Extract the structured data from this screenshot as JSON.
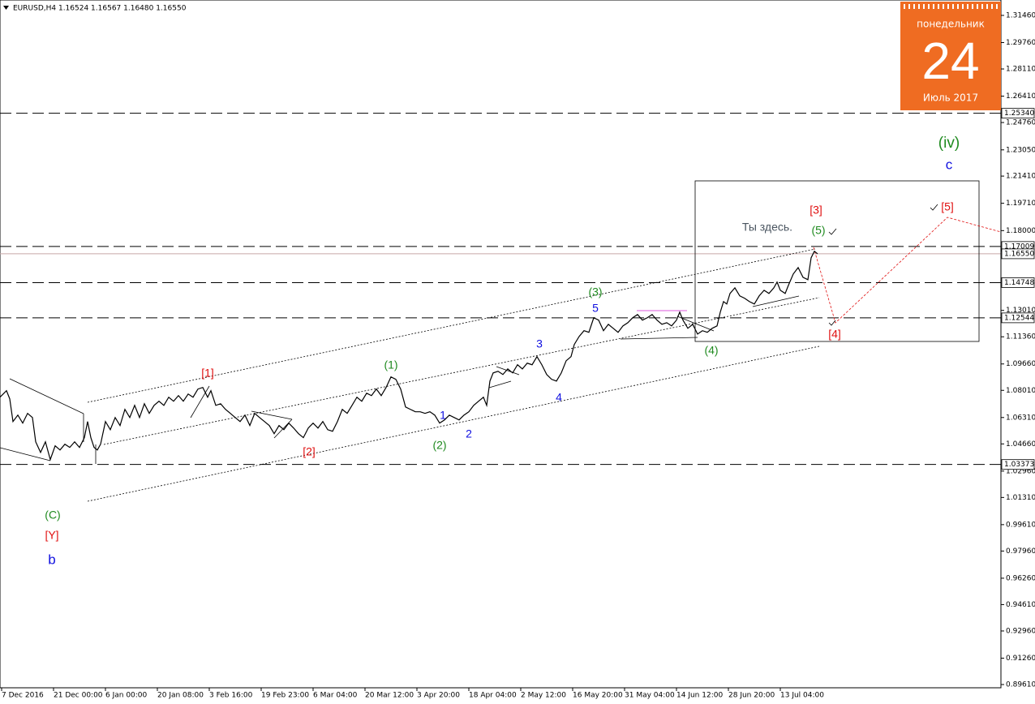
{
  "header": "EURUSD,H4  1.16524 1.16567 1.16480 1.16550",
  "widget": {
    "weekday": "понедельник",
    "day": "24",
    "month_year": "Июль 2017",
    "color": "#ef6c22"
  },
  "chart_data": {
    "type": "line",
    "series": [
      {
        "name": "EURUSD,H4",
        "color": "#000000",
        "x": [
          0,
          8,
          12,
          16,
          22,
          28,
          34,
          40,
          44,
          50,
          56,
          62,
          68,
          74,
          80,
          86,
          92,
          98,
          104,
          108,
          112,
          116,
          120,
          124,
          130,
          136,
          142,
          148,
          154,
          160,
          166,
          172,
          178,
          184,
          190,
          196,
          202,
          208,
          214,
          220,
          226,
          232,
          238,
          244,
          250,
          256,
          260,
          266,
          272,
          278,
          284,
          290,
          296,
          302,
          308,
          314,
          320,
          326,
          332,
          338,
          344,
          350,
          356,
          362,
          368,
          374,
          380,
          386,
          392,
          398,
          404,
          410,
          416,
          422,
          428,
          434,
          440,
          446,
          452,
          458,
          464,
          470,
          476,
          482,
          488,
          494,
          500,
          506,
          512,
          518,
          524,
          530,
          536,
          542,
          548,
          554,
          560,
          566,
          572,
          578,
          584,
          590,
          596,
          600,
          604,
          608,
          614,
          620,
          626,
          632,
          638,
          644,
          650,
          656,
          662,
          668,
          674,
          680,
          686,
          692,
          698,
          704,
          708,
          714,
          720,
          726,
          732,
          738,
          744,
          750,
          756,
          762,
          768,
          774,
          780,
          786,
          792,
          798,
          804,
          810,
          816,
          822,
          828,
          834,
          838,
          842,
          848,
          854,
          860,
          866,
          872,
          878,
          884,
          888,
          892,
          896,
          900,
          906,
          912,
          918,
          924,
          930,
          936,
          942,
          948,
          954,
          958,
          962,
          968,
          972,
          978,
          984,
          990,
          996,
          1000,
          1004,
          1008
        ],
        "values": [
          1.0758,
          1.0799,
          1.0748,
          1.0606,
          1.0646,
          1.0596,
          1.0657,
          1.0631,
          1.0479,
          1.0413,
          1.0479,
          1.0368,
          1.0454,
          1.0428,
          1.0464,
          1.0444,
          1.0479,
          1.0444,
          1.0505,
          1.0606,
          1.0505,
          1.0444,
          1.0428,
          1.0464,
          1.0606,
          1.0555,
          1.0631,
          1.0581,
          1.0682,
          1.0631,
          1.0707,
          1.0631,
          1.0717,
          1.0657,
          1.0707,
          1.0733,
          1.0707,
          1.0758,
          1.0733,
          1.0768,
          1.0733,
          1.0778,
          1.0758,
          1.0809,
          1.0819,
          1.0758,
          1.0799,
          1.0707,
          1.0717,
          1.0682,
          1.0657,
          1.0631,
          1.0606,
          1.0646,
          1.0581,
          1.0657,
          1.0631,
          1.0606,
          1.0581,
          1.053,
          1.0581,
          1.0555,
          1.0596,
          1.0565,
          1.053,
          1.0505,
          1.0565,
          1.0596,
          1.0565,
          1.0606,
          1.0555,
          1.0545,
          1.0606,
          1.0682,
          1.0657,
          1.0707,
          1.0758,
          1.0733,
          1.0783,
          1.0768,
          1.0809,
          1.0768,
          1.0819,
          1.0885,
          1.087,
          1.0809,
          1.0697,
          1.0682,
          1.0667,
          1.0667,
          1.0657,
          1.0667,
          1.0646,
          1.0596,
          1.0616,
          1.0646,
          1.0631,
          1.0616,
          1.0646,
          1.0667,
          1.0707,
          1.0733,
          1.0758,
          1.0707,
          1.0859,
          1.091,
          1.092,
          1.09,
          1.0935,
          1.091,
          1.0961,
          1.0935,
          1.0971,
          1.0961,
          1.1012,
          1.0961,
          1.09,
          1.087,
          1.0859,
          1.091,
          1.0986,
          1.1012,
          1.1088,
          1.1138,
          1.1174,
          1.1164,
          1.1255,
          1.124,
          1.1174,
          1.1214,
          1.1189,
          1.1164,
          1.1204,
          1.1224,
          1.1255,
          1.1275,
          1.124,
          1.1255,
          1.1275,
          1.124,
          1.1214,
          1.1224,
          1.1204,
          1.124,
          1.129,
          1.124,
          1.1189,
          1.1214,
          1.1153,
          1.1174,
          1.1164,
          1.1189,
          1.1204,
          1.129,
          1.1356,
          1.1341,
          1.1407,
          1.1442,
          1.1392,
          1.1377,
          1.1356,
          1.1341,
          1.1392,
          1.1427,
          1.1407,
          1.1442,
          1.1478,
          1.1427,
          1.1407,
          1.1458,
          1.1529,
          1.1569,
          1.1508,
          1.1493,
          1.163,
          1.1671,
          1.1655
        ]
      }
    ],
    "xlim": [
      0,
      1234
    ],
    "ylim": [
      0.89407,
      1.32423
    ],
    "xticks": [
      {
        "value": 2,
        "label": "7 Dec 2016"
      },
      {
        "value": 66,
        "label": "21 Dec 00:00"
      },
      {
        "value": 130,
        "label": "6 Jan 00:00"
      },
      {
        "value": 194,
        "label": "20 Jan 08:00"
      },
      {
        "value": 258,
        "label": "3 Feb 16:00"
      },
      {
        "value": 322,
        "label": "19 Feb 23:00"
      },
      {
        "value": 386,
        "label": "6 Mar 04:00"
      },
      {
        "value": 450,
        "label": "20 Mar 12:00"
      },
      {
        "value": 514,
        "label": "3 Apr 20:00"
      },
      {
        "value": 578,
        "label": "18 Apr 04:00"
      },
      {
        "value": 642,
        "label": "2 May 12:00"
      },
      {
        "value": 706,
        "label": "16 May 20:00"
      },
      {
        "value": 770,
        "label": "31 May 04:00"
      },
      {
        "value": 834,
        "label": "14 Jun 12:00"
      },
      {
        "value": 898,
        "label": "28 Jun 20:00"
      },
      {
        "value": 962,
        "label": "13 Jul 04:00"
      }
    ],
    "yticks": [
      {
        "value": 1.3146,
        "label": "1.31460"
      },
      {
        "value": 1.2976,
        "label": "1.29760"
      },
      {
        "value": 1.2811,
        "label": "1.28110"
      },
      {
        "value": 1.2641,
        "label": "1.26410"
      },
      {
        "value": 1.2476,
        "label": "1.24760"
      },
      {
        "value": 1.2305,
        "label": "1.23050"
      },
      {
        "value": 1.2141,
        "label": "1.21410"
      },
      {
        "value": 1.1971,
        "label": "1.19710"
      },
      {
        "value": 1.18,
        "label": "1.18000"
      },
      {
        "value": 1.1301,
        "label": "1.13010"
      },
      {
        "value": 1.1136,
        "label": "1.11360"
      },
      {
        "value": 1.0966,
        "label": "1.09660"
      },
      {
        "value": 1.0801,
        "label": "1.08010"
      },
      {
        "value": 1.0631,
        "label": "1.06310"
      },
      {
        "value": 1.0466,
        "label": "1.04660"
      },
      {
        "value": 1.0296,
        "label": "1.02960"
      },
      {
        "value": 1.0131,
        "label": "1.01310"
      },
      {
        "value": 0.9961,
        "label": "0.99610"
      },
      {
        "value": 0.9796,
        "label": "0.97960"
      },
      {
        "value": 0.9626,
        "label": "0.96260"
      },
      {
        "value": 0.9461,
        "label": "0.94610"
      },
      {
        "value": 0.9296,
        "label": "0.92960"
      },
      {
        "value": 0.9126,
        "label": "0.91260"
      },
      {
        "value": 0.8961,
        "label": "0.89610"
      }
    ],
    "levels": [
      {
        "value": 1.2534,
        "label": "1.25340"
      },
      {
        "value": 1.17009,
        "label": "1.17009"
      },
      {
        "value": 1.14748,
        "label": "1.14748"
      },
      {
        "value": 1.12544,
        "label": "1.12544"
      },
      {
        "value": 1.03373,
        "label": "1.03373"
      }
    ],
    "price_line": {
      "value": 1.1655,
      "label": "1.16550",
      "color": "#c8a8a8"
    },
    "annotations": [
      {
        "text": "[1]",
        "color": "#e01010"
      },
      {
        "text": "[2]",
        "color": "#e01010"
      },
      {
        "text": "(1)",
        "color": "#1f8a1f"
      },
      {
        "text": "(2)",
        "color": "#1f8a1f"
      },
      {
        "text": "1",
        "color": "#1010e0"
      },
      {
        "text": "2",
        "color": "#1010e0"
      },
      {
        "text": "3",
        "color": "#1010e0"
      },
      {
        "text": "4",
        "color": "#1010e0"
      },
      {
        "text": "5",
        "color": "#1010e0"
      },
      {
        "text": "(3)",
        "color": "#1f8a1f"
      },
      {
        "text": "(4)",
        "color": "#1f8a1f"
      },
      {
        "text": "(5)",
        "color": "#1f8a1f"
      },
      {
        "text": "[3]",
        "color": "#e01010"
      },
      {
        "text": "[4]",
        "color": "#e01010"
      },
      {
        "text": "[5]",
        "color": "#e01010"
      },
      {
        "text": "Ты здесь.",
        "color": "#4a5560"
      },
      {
        "text": "(iv)",
        "color": "#1f8a1f"
      },
      {
        "text": "c",
        "color": "#1010e0"
      },
      {
        "text": "(C)",
        "color": "#1f8a1f"
      },
      {
        "text": "[Y]",
        "color": "#e01010"
      },
      {
        "text": "b",
        "color": "#1010e0"
      }
    ]
  }
}
